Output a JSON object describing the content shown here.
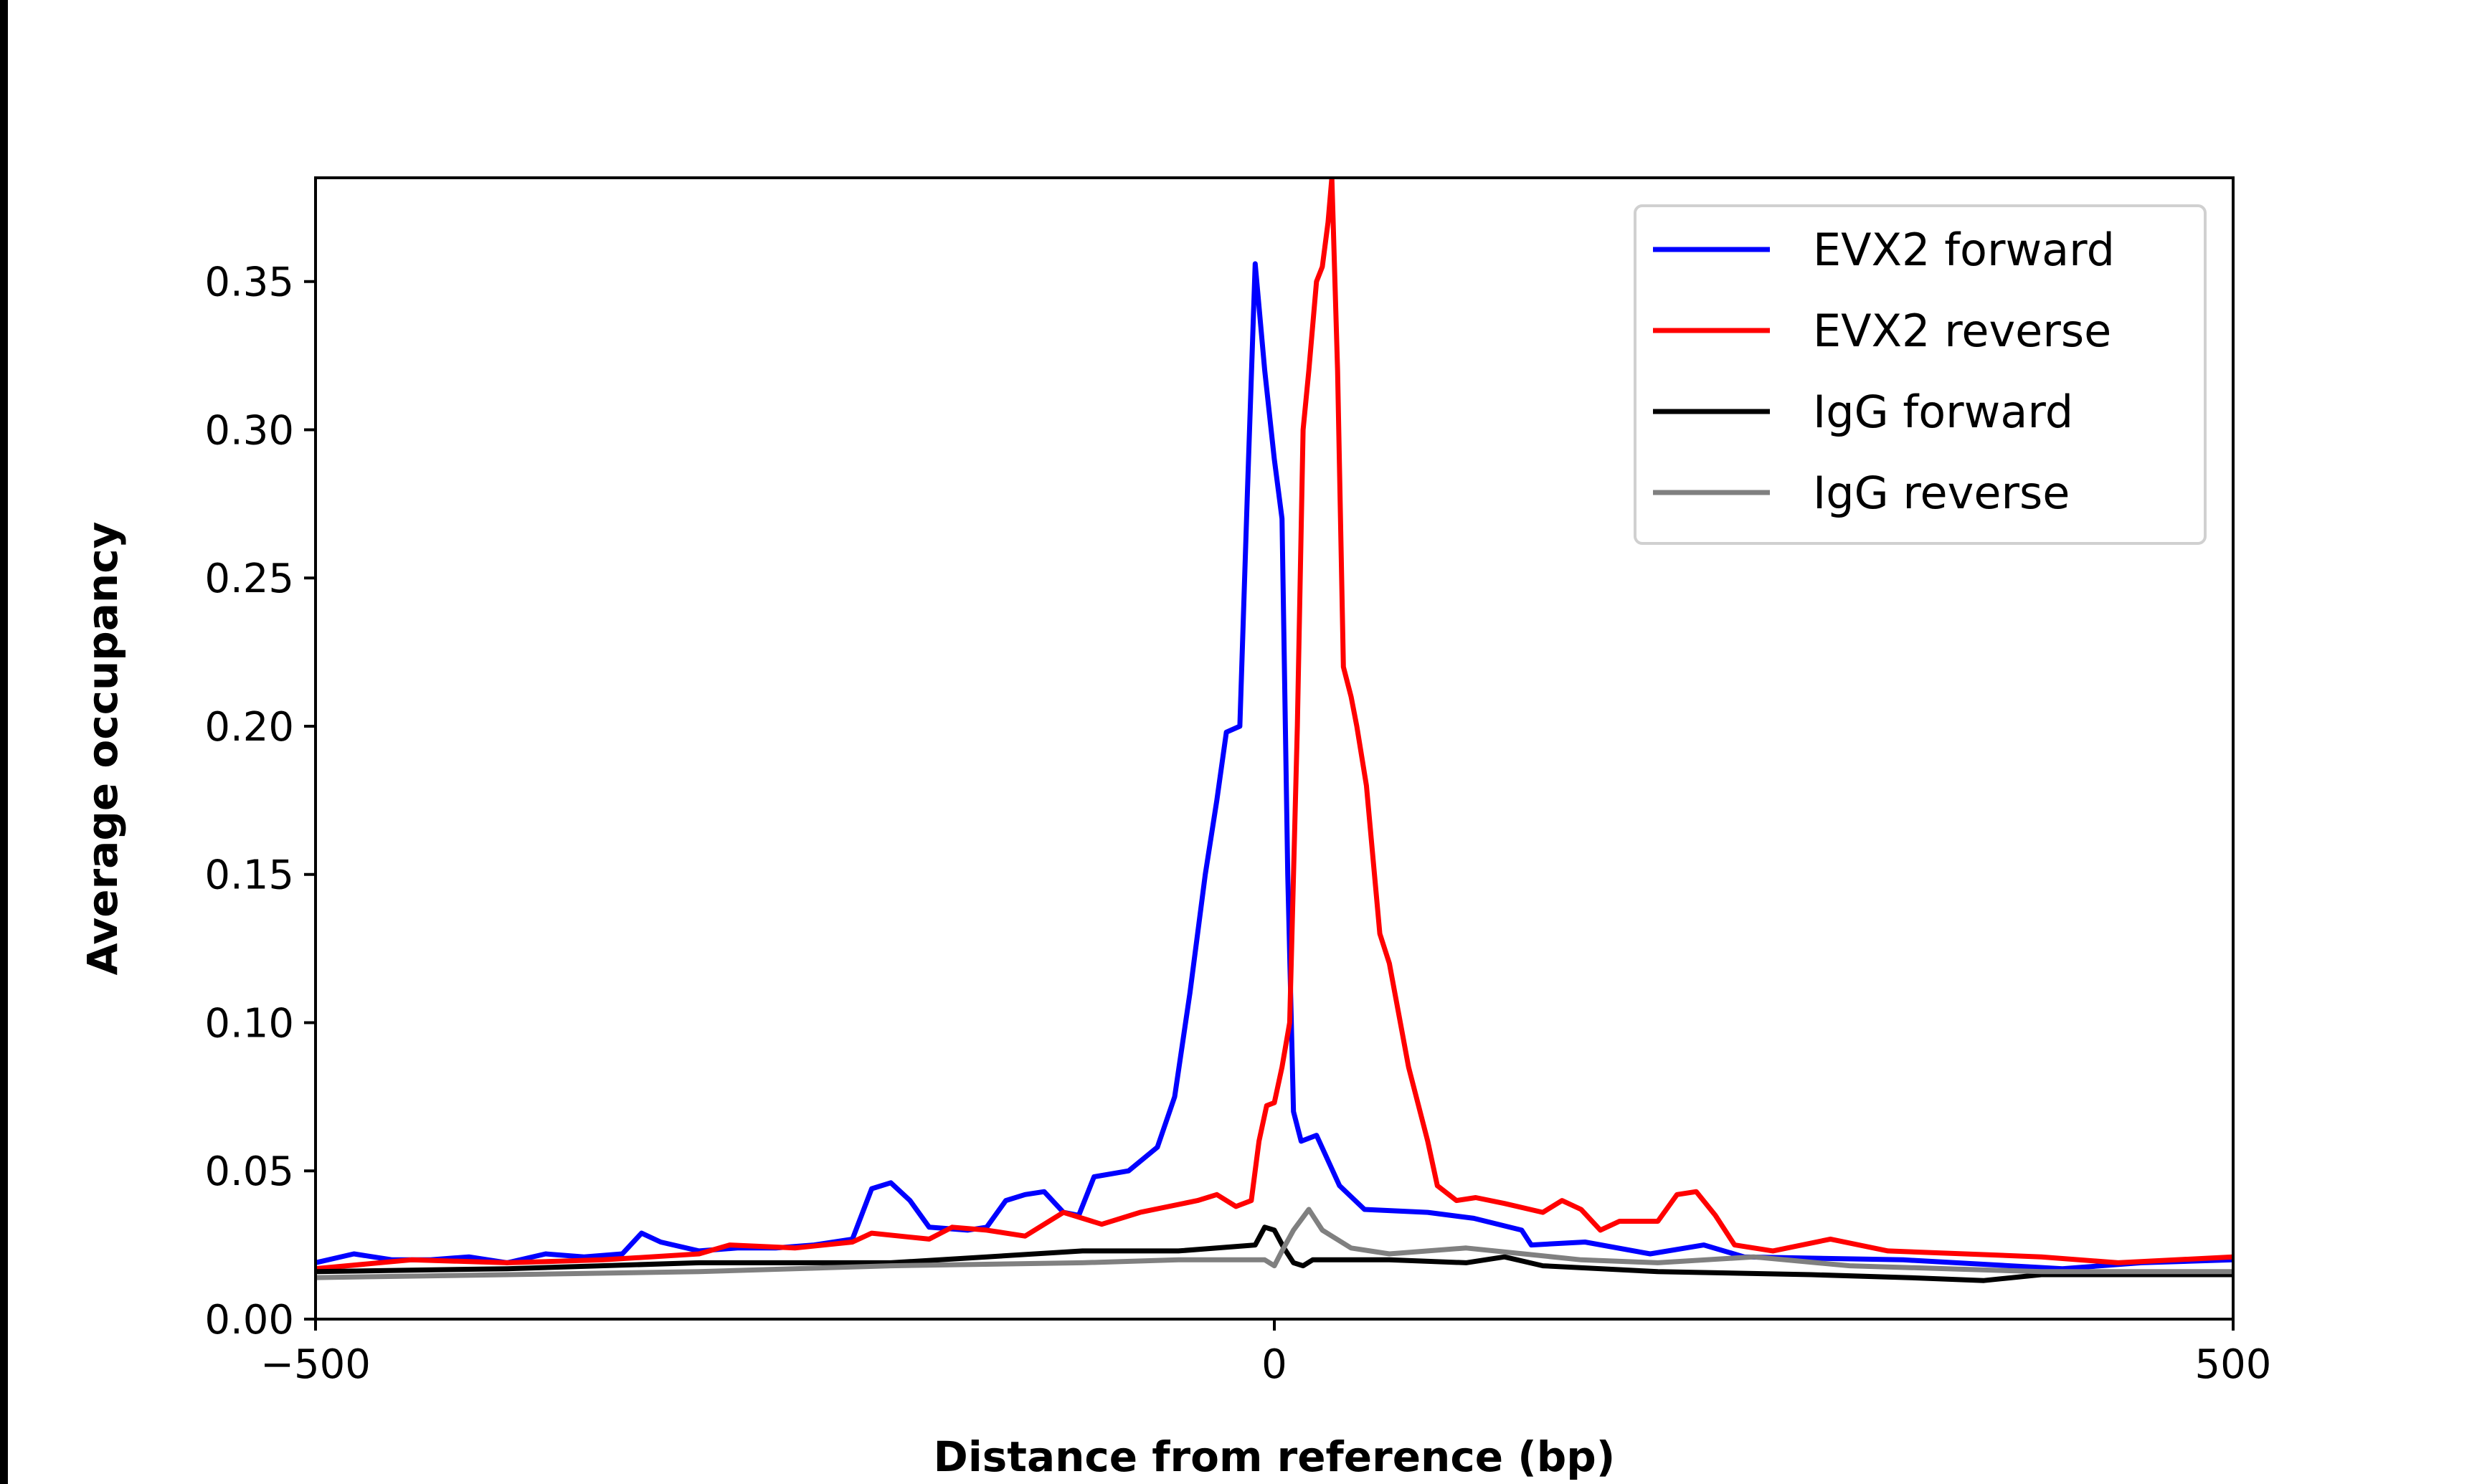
{
  "chart_data": {
    "type": "line",
    "title": "",
    "xlabel": "Distance from reference (bp)",
    "ylabel": "Average occupancy",
    "xlim": [
      -500,
      500
    ],
    "ylim": [
      0,
      0.385
    ],
    "xticks": [
      -500,
      0,
      500
    ],
    "xtick_labels": [
      "−500",
      "0",
      "500"
    ],
    "yticks": [
      0,
      0.05,
      0.1,
      0.15,
      0.2,
      0.25,
      0.3,
      0.35
    ],
    "ytick_labels": [
      "0.00",
      "0.05",
      "0.10",
      "0.15",
      "0.20",
      "0.25",
      "0.30",
      "0.35"
    ],
    "grid": false,
    "legend_position": "top-right",
    "series": [
      {
        "name": "EVX2 forward",
        "color": "#0000ff",
        "x": [
          -500,
          -480,
          -460,
          -440,
          -420,
          -400,
          -380,
          -360,
          -340,
          -330,
          -320,
          -300,
          -280,
          -260,
          -240,
          -220,
          -210,
          -200,
          -190,
          -180,
          -160,
          -150,
          -140,
          -130,
          -120,
          -110,
          -102,
          -94,
          -76,
          -61,
          -52,
          -44,
          -36,
          -30,
          -25,
          -18,
          -14,
          -10,
          -5,
          0,
          4,
          7,
          10,
          14,
          22,
          34,
          47,
          80,
          104,
          129,
          134,
          162,
          196,
          224,
          245,
          328,
          411,
          452,
          500
        ],
        "y": [
          0.019,
          0.022,
          0.02,
          0.02,
          0.021,
          0.019,
          0.022,
          0.021,
          0.022,
          0.029,
          0.026,
          0.023,
          0.024,
          0.024,
          0.025,
          0.027,
          0.044,
          0.046,
          0.04,
          0.031,
          0.03,
          0.031,
          0.04,
          0.042,
          0.043,
          0.036,
          0.035,
          0.048,
          0.05,
          0.058,
          0.075,
          0.11,
          0.15,
          0.175,
          0.198,
          0.2,
          0.28,
          0.356,
          0.32,
          0.29,
          0.27,
          0.15,
          0.07,
          0.06,
          0.062,
          0.045,
          0.037,
          0.036,
          0.034,
          0.03,
          0.025,
          0.026,
          0.022,
          0.025,
          0.021,
          0.02,
          0.017,
          0.019,
          0.02
        ]
      },
      {
        "name": "EVX2 reverse",
        "color": "#ff0000",
        "x": [
          -500,
          -450,
          -400,
          -350,
          -300,
          -284,
          -250,
          -220,
          -210,
          -180,
          -168,
          -150,
          -130,
          -110,
          -90,
          -70,
          -40,
          -30,
          -20,
          -12,
          -8,
          -4,
          0,
          4,
          8,
          12,
          15,
          18,
          22,
          25,
          28,
          30,
          33,
          36,
          40,
          43,
          48,
          55,
          60,
          70,
          80,
          85,
          95,
          105,
          120,
          140,
          150,
          160,
          170,
          180,
          200,
          210,
          220,
          230,
          240,
          260,
          290,
          320,
          360,
          400,
          440,
          500
        ],
        "y": [
          0.017,
          0.02,
          0.019,
          0.02,
          0.022,
          0.025,
          0.024,
          0.026,
          0.029,
          0.027,
          0.031,
          0.03,
          0.028,
          0.036,
          0.032,
          0.036,
          0.04,
          0.042,
          0.038,
          0.04,
          0.06,
          0.072,
          0.073,
          0.085,
          0.1,
          0.2,
          0.3,
          0.32,
          0.35,
          0.355,
          0.37,
          0.385,
          0.32,
          0.22,
          0.21,
          0.2,
          0.18,
          0.13,
          0.12,
          0.085,
          0.06,
          0.045,
          0.04,
          0.041,
          0.039,
          0.036,
          0.04,
          0.037,
          0.03,
          0.033,
          0.033,
          0.042,
          0.043,
          0.035,
          0.025,
          0.023,
          0.027,
          0.023,
          0.022,
          0.021,
          0.019,
          0.021
        ]
      },
      {
        "name": "IgG forward",
        "color": "#000000",
        "x": [
          -500,
          -400,
          -300,
          -200,
          -150,
          -100,
          -50,
          -10,
          -5,
          0,
          5,
          10,
          15,
          20,
          60,
          100,
          120,
          140,
          200,
          280,
          330,
          370,
          400,
          500
        ],
        "y": [
          0.016,
          0.017,
          0.019,
          0.019,
          0.021,
          0.023,
          0.023,
          0.025,
          0.031,
          0.03,
          0.024,
          0.019,
          0.018,
          0.02,
          0.02,
          0.019,
          0.021,
          0.018,
          0.016,
          0.015,
          0.014,
          0.013,
          0.015,
          0.015
        ]
      },
      {
        "name": "IgG reverse",
        "color": "#808080",
        "x": [
          -500,
          -400,
          -300,
          -200,
          -100,
          -50,
          -5,
          0,
          4,
          10,
          18,
          25,
          30,
          40,
          60,
          100,
          130,
          160,
          200,
          250,
          300,
          400,
          500
        ],
        "y": [
          0.014,
          0.015,
          0.016,
          0.018,
          0.019,
          0.02,
          0.02,
          0.018,
          0.023,
          0.03,
          0.037,
          0.03,
          0.028,
          0.024,
          0.022,
          0.024,
          0.022,
          0.02,
          0.019,
          0.021,
          0.018,
          0.016,
          0.016
        ]
      }
    ]
  }
}
